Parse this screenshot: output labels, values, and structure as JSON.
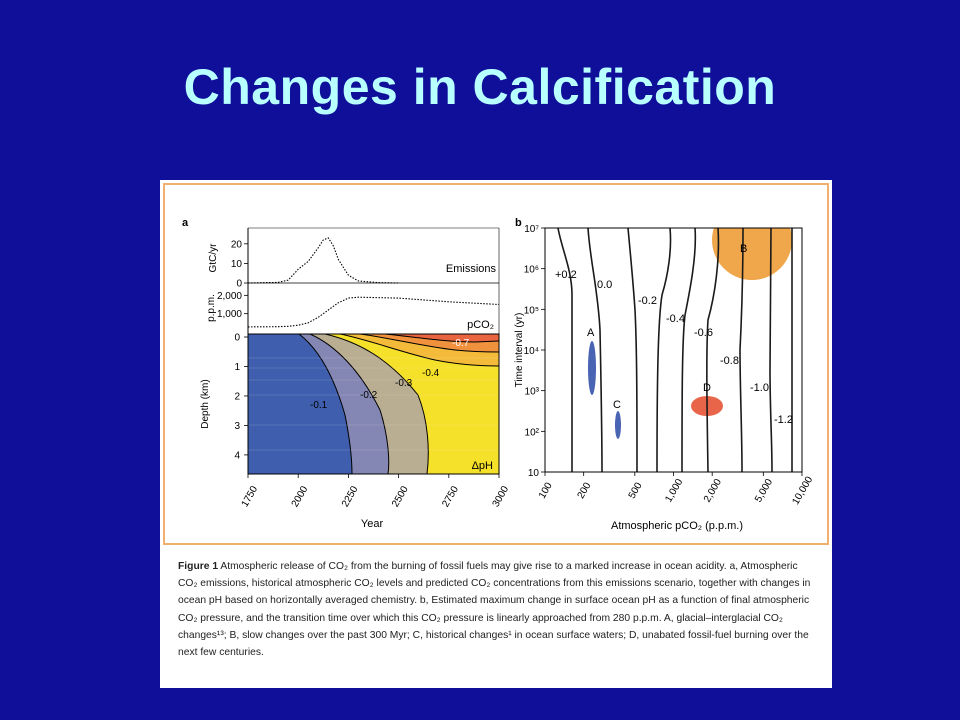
{
  "slide": {
    "title": "Changes in Calcification"
  },
  "colors": {
    "background": "#0f0f9a",
    "title": "#b8ffff",
    "frame": "#f0b070"
  },
  "figure": {
    "caption_title": "Figure 1",
    "caption_text": "Atmospheric release of CO₂ from the burning of fossil fuels may give rise to a marked increase in ocean acidity. a, Atmospheric CO₂ emissions, historical atmospheric CO₂ levels and predicted CO₂ concentrations from this emissions scenario, together with changes in ocean pH based on horizontally averaged chemistry. b, Estimated maximum change in surface ocean pH as a function of final atmospheric CO₂ pressure, and the transition time over which this CO₂ pressure is linearly approached from 280 p.p.m. A, glacial–interglacial CO₂ changes¹³; B, slow changes over the past 300 Myr; C, historical changes¹ in ocean surface waters; D, unabated fossil-fuel burning over the next few centuries."
  },
  "chart_data": [
    {
      "type": "line",
      "panel": "a",
      "subplots": [
        {
          "ylabel": "GtC/yr",
          "series_label": "Emissions",
          "yticks": [
            "0",
            "10",
            "20"
          ],
          "x": [
            1750,
            1900,
            1950,
            2000,
            2050,
            2100,
            2125,
            2150,
            2175,
            2200,
            2250,
            2300,
            2400,
            2500
          ],
          "y": [
            0,
            0.3,
            1.5,
            7,
            11,
            18,
            22,
            23,
            19,
            12,
            4,
            1,
            0.2,
            0
          ]
        },
        {
          "ylabel": "p.p.m.",
          "series_label": "pCO₂",
          "yticks": [
            "1,000",
            "2,000"
          ],
          "x": [
            1750,
            1900,
            1950,
            2000,
            2050,
            2100,
            2150,
            2200,
            2250,
            2300,
            2500,
            2750,
            3000
          ],
          "y": [
            280,
            290,
            310,
            370,
            500,
            800,
            1200,
            1600,
            1850,
            1900,
            1850,
            1650,
            1500
          ]
        },
        {
          "type": "contour",
          "ylabel": "Depth (km)",
          "xlabel": "Year",
          "yticks": [
            "0",
            "1",
            "2",
            "3",
            "4"
          ],
          "xticks": [
            "1750",
            "2000",
            "2250",
            "2500",
            "2750",
            "3000"
          ],
          "xlim": [
            1750,
            3000
          ],
          "ylim": [
            0,
            5
          ],
          "contour_labels": [
            "-0.1",
            "-0.2",
            "-0.3",
            "-0.4",
            "-0.7"
          ],
          "series_label": "ΔpH"
        }
      ]
    },
    {
      "type": "contour",
      "panel": "b",
      "xlabel": "Atmospheric pCO₂ (p.p.m.)",
      "ylabel": "Time interval (yr)",
      "xscale": "log",
      "yscale": "log",
      "xlim": [
        100,
        10000
      ],
      "ylim": [
        10,
        10000000
      ],
      "xticks": [
        "100",
        "200",
        "500",
        "1,000",
        "2,000",
        "5,000",
        "10,000"
      ],
      "yticks": [
        "10",
        "10²",
        "10³",
        "10⁴",
        "10⁵",
        "10⁶",
        "10⁷"
      ],
      "contour_labels": [
        "+0.2",
        "0.0",
        "-0.2",
        "-0.4",
        "-0.6",
        "-0.8",
        "-1.0",
        "-1.2"
      ],
      "regions": [
        {
          "label": "A",
          "x": 220,
          "y_range": [
            1000,
            20000
          ],
          "color": "#4a64b4"
        },
        {
          "label": "B",
          "x": 3500,
          "y_range": [
            2000000,
            10000000
          ],
          "color": "#f0a64a"
        },
        {
          "label": "C",
          "x": 420,
          "y_range": [
            70,
            250
          ],
          "color": "#4a64b4"
        },
        {
          "label": "D",
          "x": 2000,
          "y_range": [
            300,
            700
          ],
          "color": "#e8654a"
        }
      ]
    }
  ]
}
